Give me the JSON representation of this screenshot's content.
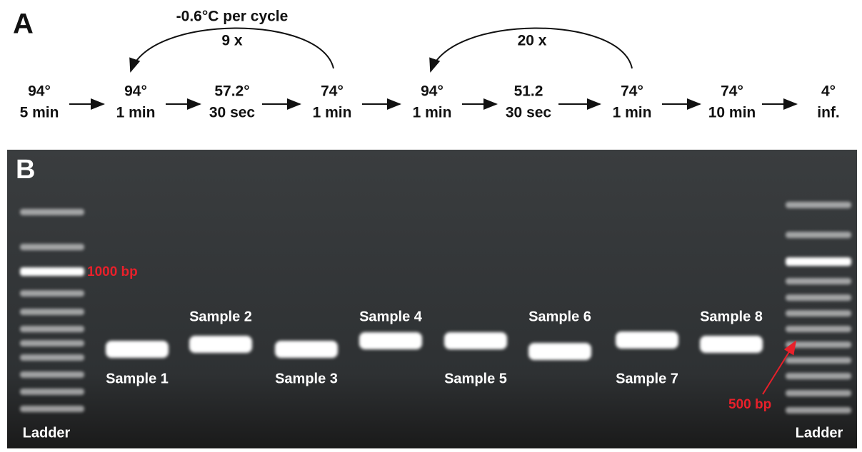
{
  "panel_a": {
    "label": "A",
    "loops": [
      {
        "note": "-0.6°C per cycle",
        "count": "9 x"
      },
      {
        "count": "20 x"
      }
    ],
    "steps": [
      {
        "temp": "94°",
        "time": "5 min"
      },
      {
        "temp": "94°",
        "time": "1 min"
      },
      {
        "temp": "57.2°",
        "time": "30 sec"
      },
      {
        "temp": "74°",
        "time": "1 min"
      },
      {
        "temp": "94°",
        "time": "1 min"
      },
      {
        "temp": "51.2",
        "time": "30 sec"
      },
      {
        "temp": "74°",
        "time": "1 min"
      },
      {
        "temp": "74°",
        "time": "10 min"
      },
      {
        "temp": "4°",
        "time": "inf."
      }
    ]
  },
  "panel_b": {
    "label": "B",
    "ladders": [
      "Ladder",
      "Ladder"
    ],
    "samples": [
      "Sample 1",
      "Sample 2",
      "Sample 3",
      "Sample 4",
      "Sample 5",
      "Sample 6",
      "Sample 7",
      "Sample 8"
    ],
    "markers": [
      "1000 bp",
      "500 bp"
    ]
  }
}
